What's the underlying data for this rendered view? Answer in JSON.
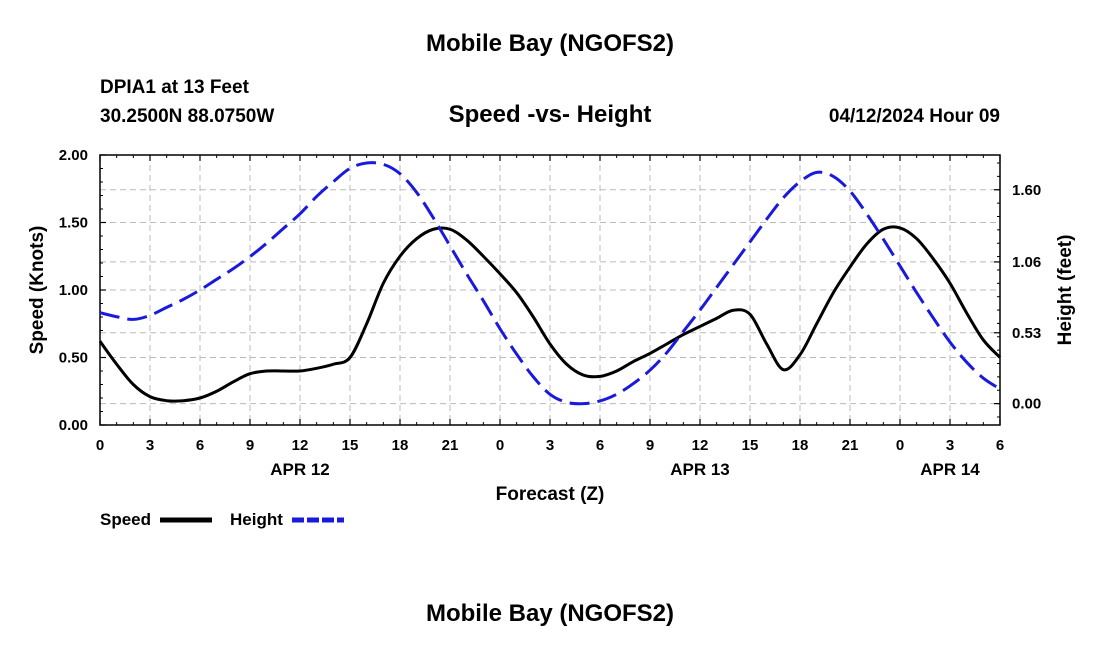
{
  "header": {
    "title": "Mobile Bay (NGOFS2)",
    "station": "DPIA1 at 13 Feet",
    "coords": "30.2500N  88.0750W",
    "subtitle": "Speed -vs- Height",
    "datetime": "04/12/2024 Hour 09"
  },
  "footer": {
    "title": "Mobile Bay (NGOFS2)"
  },
  "chart_data": {
    "type": "line",
    "title": "Speed -vs- Height",
    "xlabel": "Forecast (Z)",
    "ylabel": "Speed (Knots)",
    "y2label": "Height (feet)",
    "x_hours": [
      0,
      1,
      2,
      3,
      4,
      5,
      6,
      7,
      8,
      9,
      10,
      11,
      12,
      13,
      14,
      15,
      16,
      17,
      18,
      19,
      20,
      21,
      22,
      23,
      24,
      25,
      26,
      27,
      28,
      29,
      30,
      31,
      32,
      33,
      34,
      35,
      36,
      37,
      38,
      39,
      40,
      41,
      42,
      43,
      44,
      45,
      46,
      47,
      48,
      49,
      50,
      51,
      52,
      53,
      54
    ],
    "xlim": [
      0,
      54
    ],
    "ylim": [
      0,
      2.0
    ],
    "y2lim": [
      -0.16,
      1.86
    ],
    "xticks": [
      0,
      3,
      6,
      9,
      12,
      15,
      18,
      21,
      24,
      27,
      30,
      33,
      36,
      39,
      42,
      45,
      48,
      51,
      54
    ],
    "xtick_labels": [
      "0",
      "3",
      "6",
      "9",
      "12",
      "15",
      "18",
      "21",
      "0",
      "3",
      "6",
      "9",
      "12",
      "15",
      "18",
      "21",
      "0",
      "3",
      "6"
    ],
    "yticks": [
      0,
      0.5,
      1.0,
      1.5,
      2.0
    ],
    "ytick_labels": [
      "0.00",
      "0.50",
      "1.00",
      "1.50",
      "2.00"
    ],
    "y2ticks": [
      0,
      0.53,
      1.06,
      1.6
    ],
    "y2tick_labels": [
      "0.00",
      "0.53",
      "1.06",
      "1.60"
    ],
    "date_labels": [
      {
        "text": "APR 12",
        "hour": 12
      },
      {
        "text": "APR 13",
        "hour": 36
      },
      {
        "text": "APR 14",
        "hour": 51
      }
    ],
    "series": [
      {
        "name": "Speed",
        "axis": "left",
        "color": "#000000",
        "dash": "solid",
        "values": [
          0.62,
          0.45,
          0.3,
          0.21,
          0.18,
          0.18,
          0.2,
          0.25,
          0.32,
          0.38,
          0.4,
          0.4,
          0.4,
          0.42,
          0.45,
          0.5,
          0.75,
          1.05,
          1.25,
          1.38,
          1.45,
          1.45,
          1.37,
          1.25,
          1.12,
          0.98,
          0.8,
          0.6,
          0.45,
          0.37,
          0.36,
          0.4,
          0.47,
          0.53,
          0.6,
          0.67,
          0.73,
          0.79,
          0.85,
          0.82,
          0.6,
          0.41,
          0.52,
          0.75,
          0.98,
          1.17,
          1.34,
          1.45,
          1.46,
          1.38,
          1.23,
          1.05,
          0.83,
          0.63,
          0.5
        ]
      },
      {
        "name": "Height",
        "axis": "right",
        "color": "#1a1adc",
        "dash": "dashed",
        "values": [
          0.68,
          0.65,
          0.63,
          0.66,
          0.72,
          0.78,
          0.85,
          0.93,
          1.01,
          1.1,
          1.2,
          1.31,
          1.42,
          1.55,
          1.66,
          1.76,
          1.8,
          1.79,
          1.72,
          1.58,
          1.39,
          1.18,
          0.97,
          0.77,
          0.56,
          0.37,
          0.2,
          0.07,
          0.01,
          0.0,
          0.02,
          0.07,
          0.15,
          0.25,
          0.38,
          0.54,
          0.7,
          0.87,
          1.04,
          1.21,
          1.38,
          1.54,
          1.66,
          1.73,
          1.7,
          1.59,
          1.42,
          1.23,
          1.03,
          0.83,
          0.64,
          0.46,
          0.31,
          0.19,
          0.11
        ]
      }
    ],
    "legend": [
      {
        "label": "Speed",
        "color": "#000000",
        "dash": "solid"
      },
      {
        "label": "Height",
        "color": "#1a1adc",
        "dash": "dashed"
      }
    ]
  }
}
